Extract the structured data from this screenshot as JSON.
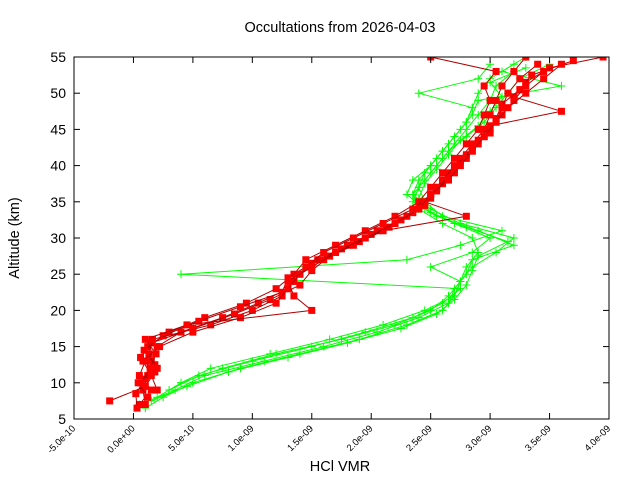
{
  "chart_data": {
    "type": "line",
    "title": "Occultations from 2026-04-03",
    "xlabel": "HCl VMR",
    "ylabel": "Altitude (km)",
    "xlim": [
      -5e-10,
      4e-09
    ],
    "ylim": [
      5,
      55
    ],
    "grid": false,
    "legend": "none",
    "x_ticks": [
      "-5.0e-10",
      "0.0e+00",
      "5.0e-10",
      "1.0e-09",
      "1.5e-09",
      "2.0e-09",
      "2.5e-09",
      "3.0e-09",
      "3.5e-09",
      "4.0e-09"
    ],
    "x_tick_values": [
      -5e-10,
      0,
      5e-10,
      1e-09,
      1.5e-09,
      2e-09,
      2.5e-09,
      3e-09,
      3.5e-09,
      4e-09
    ],
    "y_ticks": [
      "5",
      "10",
      "15",
      "20",
      "25",
      "30",
      "35",
      "40",
      "45",
      "50",
      "55"
    ],
    "y_tick_values": [
      5,
      10,
      15,
      20,
      25,
      30,
      35,
      40,
      45,
      50,
      55
    ],
    "series": [
      {
        "name": "red profiles",
        "color": "#ff0000",
        "marker": "filled-square",
        "profiles": [
          {
            "alt": [
              7,
              9,
              11,
              13,
              15,
              17,
              19,
              21,
              23,
              25,
              27,
              29,
              31,
              33,
              35,
              37,
              39,
              41,
              43,
              45,
              47,
              49,
              51,
              53,
              55
            ],
            "vmr": [
              1e-10,
              8e-11,
              1.2e-10,
              1.5e-10,
              2e-10,
              4e-10,
              7.5e-10,
              1.05e-09,
              1.3e-09,
              1.4e-09,
              1.55e-09,
              1.8e-09,
              2.05e-09,
              2.3e-09,
              2.45e-09,
              2.55e-09,
              2.65e-09,
              2.75e-09,
              2.85e-09,
              2.95e-09,
              3e-09,
              3.05e-09,
              3.1e-09,
              3.2e-09,
              3.3e-09
            ]
          },
          {
            "alt": [
              7,
              9,
              11,
              13,
              15,
              17,
              19,
              21,
              23,
              25,
              27,
              29,
              31,
              33,
              35,
              37,
              39,
              41,
              43,
              45,
              47,
              49,
              51,
              53,
              55
            ],
            "vmr": [
              5e-11,
              1.5e-10,
              5e-11,
              1e-10,
              1.2e-10,
              3e-10,
              6e-10,
              9.5e-10,
              1.2e-09,
              1.35e-09,
              1.45e-09,
              1.7e-09,
              1.95e-09,
              2.2e-09,
              2.4e-09,
              2.5e-09,
              2.6e-09,
              2.7e-09,
              2.8e-09,
              2.9e-09,
              2.95e-09,
              3e-09,
              2.95e-09,
              3.05e-09,
              2.5e-09
            ]
          },
          {
            "alt": [
              7.5,
              9.5,
              11.5,
              13.5,
              15.5,
              17.5,
              19.5,
              21.5,
              23.5,
              25.5,
              27.5,
              29.5,
              31.5,
              33.5,
              35.5,
              37.5,
              39.5,
              41.5,
              43.5,
              45.5,
              47.5,
              49.5,
              51.5,
              53.5,
              55
            ],
            "vmr": [
              -2e-10,
              1e-10,
              1.8e-10,
              6e-11,
              1.5e-10,
              5e-10,
              8.5e-10,
              1.15e-09,
              1.4e-09,
              1.5e-09,
              1.65e-09,
              1.9e-09,
              2.15e-09,
              2.35e-09,
              2.5e-09,
              2.6e-09,
              2.7e-09,
              2.8e-09,
              2.9e-09,
              3e-09,
              3.6e-09,
              3.2e-09,
              3.3e-09,
              3.5e-09,
              3.95e-09
            ]
          },
          {
            "alt": [
              6.5,
              8.5,
              10.5,
              12.5,
              14.5,
              16.5,
              18.5,
              20.5,
              22.5,
              24.5,
              26.5,
              28.5,
              30.5,
              32.5,
              34.5,
              36.5,
              38.5,
              40.5,
              42.5,
              44.5,
              46.5,
              48.5,
              50.5,
              52.5,
              54.5
            ],
            "vmr": [
              3e-11,
              2e-11,
              1e-10,
              1.8e-10,
              9e-11,
              2.5e-10,
              5.5e-10,
              9e-10,
              1.25e-09,
              1.3e-09,
              1.5e-09,
              1.75e-09,
              2e-09,
              2.25e-09,
              2.45e-09,
              2.55e-09,
              2.65e-09,
              2.75e-09,
              2.85e-09,
              3e-09,
              3.05e-09,
              3.1e-09,
              3.25e-09,
              3.35e-09,
              3.7e-09
            ]
          },
          {
            "alt": [
              8,
              10,
              12,
              14,
              16,
              18,
              20,
              22,
              24,
              26,
              28,
              30,
              32,
              34,
              36,
              38,
              40,
              42,
              44,
              46,
              48,
              50,
              52,
              54
            ],
            "vmr": [
              1.2e-10,
              4e-11,
              2e-10,
              1.3e-10,
              1.6e-10,
              6.5e-10,
              1e-09,
              1.25e-09,
              1.35e-09,
              1.45e-09,
              1.6e-09,
              1.85e-09,
              2.1e-09,
              2.35e-09,
              2.5e-09,
              2.6e-09,
              2.7e-09,
              2.85e-09,
              2.95e-09,
              3.05e-09,
              3.1e-09,
              3.15e-09,
              3.25e-09,
              3.4e-09
            ]
          },
          {
            "alt": [
              9,
              11,
              13,
              15,
              17,
              19,
              21,
              23,
              25,
              27,
              29,
              31,
              33,
              35,
              37,
              39,
              41,
              43,
              45,
              47,
              49,
              51,
              53
            ],
            "vmr": [
              2e-10,
              1.5e-10,
              8e-11,
              2.2e-10,
              5e-10,
              9e-10,
              1.2e-09,
              1.3e-09,
              1.4e-09,
              1.6e-09,
              1.85e-09,
              2.1e-09,
              2.8e-09,
              2.45e-09,
              2.55e-09,
              2.7e-09,
              2.8e-09,
              2.9e-09,
              3e-09,
              3.1e-09,
              3.2e-09,
              3.3e-09,
              3.45e-09
            ]
          },
          {
            "alt": [
              10,
              12,
              14,
              16,
              18,
              20,
              22,
              24,
              26,
              28,
              30,
              32,
              34,
              36,
              38,
              40,
              42,
              44,
              46,
              48,
              50,
              52,
              54
            ],
            "vmr": [
              6e-11,
              1.4e-10,
              1.9e-10,
              1e-10,
              4.5e-10,
              1.5e-09,
              1.35e-09,
              1.3e-09,
              1.5e-09,
              1.7e-09,
              1.95e-09,
              2.2e-09,
              2.4e-09,
              2.5e-09,
              2.65e-09,
              2.75e-09,
              2.85e-09,
              2.95e-09,
              3.05e-09,
              3.15e-09,
              3.3e-09,
              3.45e-09,
              3.6e-09
            ]
          }
        ]
      },
      {
        "name": "green profiles",
        "color": "#00ff00",
        "marker": "plus",
        "profiles": [
          {
            "alt": [
              6.5,
              8,
              10,
              12,
              14,
              16,
              18,
              20,
              22,
              24,
              26,
              28,
              30,
              32,
              34,
              36,
              38,
              40,
              42,
              44,
              46,
              48,
              50,
              52,
              54
            ],
            "vmr": [
              1e-10,
              2.5e-10,
              5e-10,
              9e-10,
              1.4e-09,
              1.9e-09,
              2.3e-09,
              2.6e-09,
              2.7e-09,
              2.75e-09,
              2.8e-09,
              2.9e-09,
              2.85e-09,
              2.6e-09,
              2.4e-09,
              2.35e-09,
              2.4e-09,
              2.5e-09,
              2.6e-09,
              2.7e-09,
              2.8e-09,
              2.85e-09,
              2.9e-09,
              3e-09,
              3.2e-09
            ]
          },
          {
            "alt": [
              7,
              9,
              11,
              13,
              15,
              17,
              19,
              21,
              23,
              25,
              27,
              29,
              31,
              33,
              35,
              37,
              39,
              41,
              43,
              45,
              47,
              49,
              51,
              53,
              55
            ],
            "vmr": [
              5e-11,
              3.5e-10,
              6e-10,
              1.1e-09,
              1.6e-09,
              2.05e-09,
              2.4e-09,
              2.65e-09,
              2.7e-09,
              2.8e-09,
              2.85e-09,
              3.2e-09,
              2.9e-09,
              2.55e-09,
              2.35e-09,
              2.4e-09,
              2.45e-09,
              2.55e-09,
              2.65e-09,
              2.75e-09,
              2.85e-09,
              2.9e-09,
              3.6e-09,
              3.1e-09,
              3.3e-09
            ]
          },
          {
            "alt": [
              8,
              10,
              12,
              14,
              16,
              18,
              20,
              22,
              24,
              26,
              28,
              30,
              32,
              34,
              36,
              38,
              40,
              42,
              44,
              46,
              48,
              50,
              52,
              54
            ],
            "vmr": [
              2e-10,
              4e-10,
              7.5e-10,
              1.2e-09,
              1.75e-09,
              2.2e-09,
              2.5e-09,
              2.65e-09,
              2.75e-09,
              2.5e-09,
              2.85e-09,
              3e-09,
              2.7e-09,
              2.45e-09,
              2.3e-09,
              2.35e-09,
              2.5e-09,
              2.6e-09,
              2.7e-09,
              2.8e-09,
              2.85e-09,
              2.4e-09,
              2.9e-09,
              3e-09
            ]
          },
          {
            "alt": [
              7.5,
              9.5,
              11.5,
              13.5,
              15.5,
              17.5,
              19.5,
              21.5,
              23.5,
              25.5,
              27.5,
              29.5,
              31.5,
              33.5,
              35.5,
              37.5,
              39.5,
              41.5,
              43.5,
              45.5,
              47.5,
              49.5,
              51.5,
              53.5
            ],
            "vmr": [
              1.5e-10,
              4.5e-10,
              8e-10,
              1.3e-09,
              1.8e-09,
              2.25e-09,
              2.55e-09,
              2.7e-09,
              2.8e-09,
              2.85e-09,
              2.9e-09,
              3.15e-09,
              2.8e-09,
              2.5e-09,
              2.4e-09,
              2.45e-09,
              2.55e-09,
              2.65e-09,
              2.75e-09,
              2.9e-09,
              3e-09,
              3.1e-09,
              3e-09,
              3.3e-09
            ]
          },
          {
            "alt": [
              9,
              11,
              13,
              15,
              17,
              19,
              21,
              23,
              25,
              27,
              29,
              31,
              33,
              35,
              37,
              39,
              41,
              43,
              45,
              47,
              49,
              51,
              53
            ],
            "vmr": [
              3e-10,
              5.5e-10,
              1e-09,
              1.5e-09,
              1.95e-09,
              2.35e-09,
              2.6e-09,
              2.75e-09,
              4e-10,
              2.3e-09,
              2.75e-09,
              3.1e-09,
              2.6e-09,
              2.45e-09,
              2.4e-09,
              2.5e-09,
              2.6e-09,
              2.7e-09,
              2.8e-09,
              2.9e-09,
              3e-09,
              3.05e-09,
              3.2e-09
            ]
          },
          {
            "alt": [
              10,
              12,
              14,
              16,
              18,
              20,
              22,
              24,
              26,
              28,
              30,
              32,
              34,
              36,
              38,
              40,
              42,
              44,
              46,
              48,
              50,
              52,
              54
            ],
            "vmr": [
              4e-10,
              6.5e-10,
              1.15e-09,
              1.65e-09,
              2.1e-09,
              2.45e-09,
              2.7e-09,
              2.75e-09,
              2.85e-09,
              3.05e-09,
              3.2e-09,
              2.75e-09,
              2.5e-09,
              2.35e-09,
              2.45e-09,
              2.55e-09,
              2.65e-09,
              2.8e-09,
              2.95e-09,
              3.05e-09,
              3.15e-09,
              3.25e-09,
              3.5e-09
            ]
          }
        ]
      }
    ]
  },
  "colors": {
    "red": "#ff0000",
    "red_line": "#b00000",
    "green": "#00ff00",
    "axis": "#000000"
  }
}
